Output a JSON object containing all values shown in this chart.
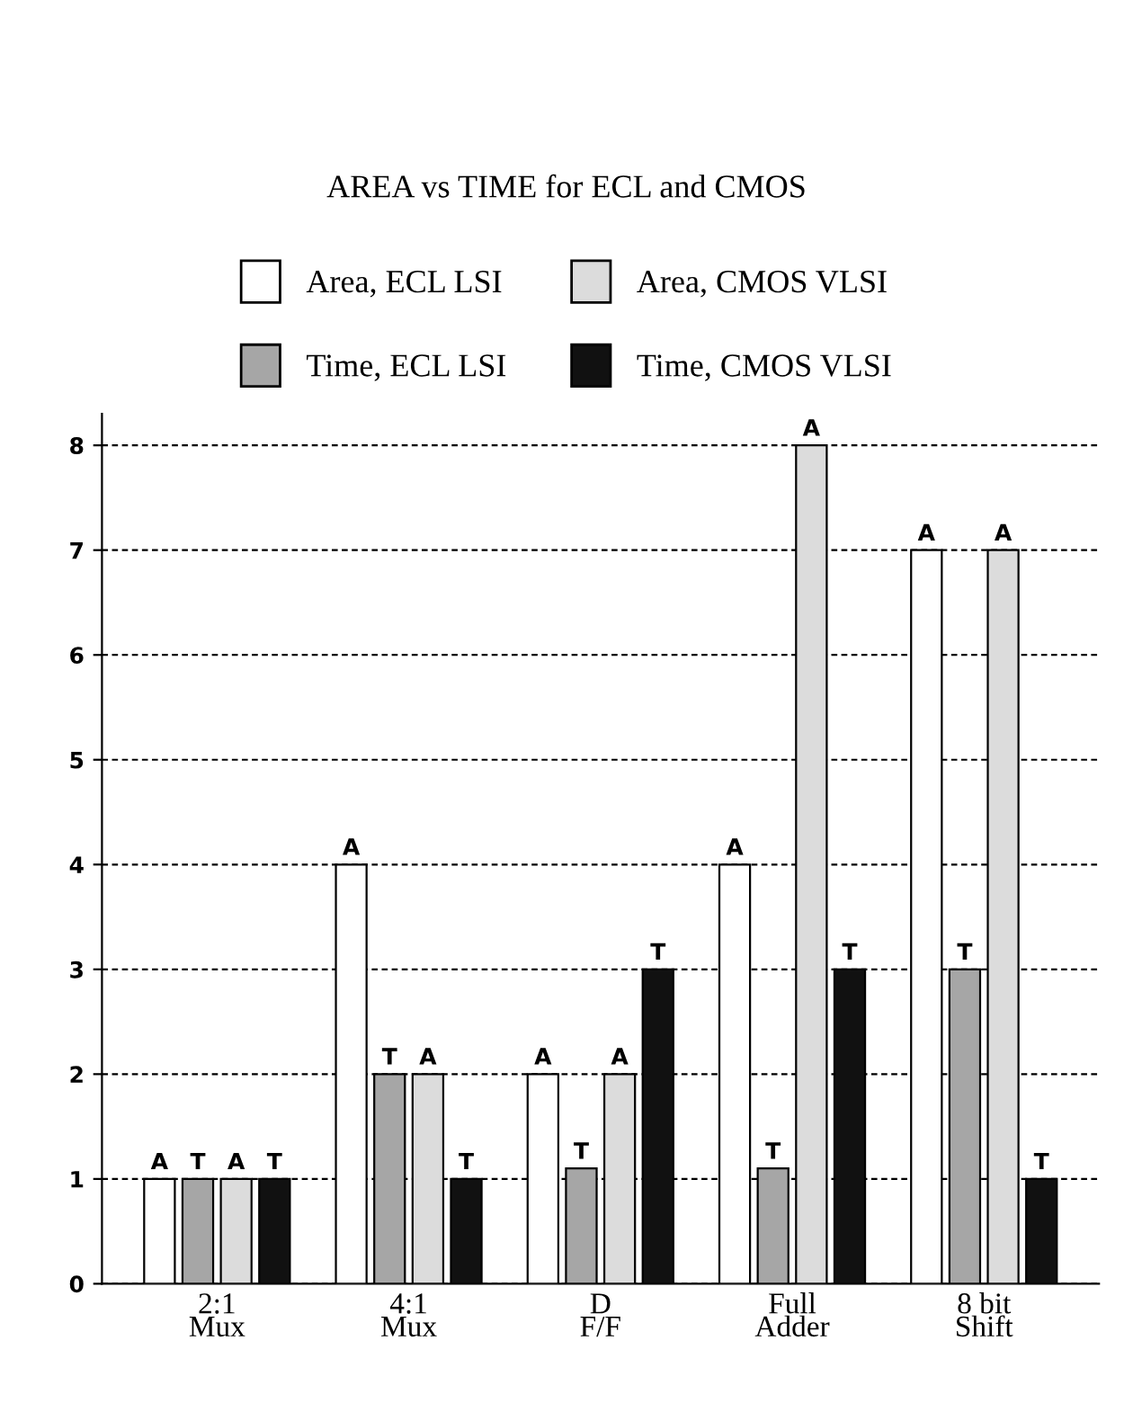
{
  "chart_data": {
    "type": "bar",
    "title": "AREA vs TIME for ECL and CMOS",
    "categories": [
      "2:1\nMux",
      "4:1\nMux",
      "D\nF/F",
      "Full\nAdder",
      "8 bit\nShift"
    ],
    "series": [
      {
        "name": "Area, ECL LSI",
        "color": "#ffffff",
        "values": [
          1,
          4,
          2,
          4,
          7
        ],
        "value_labels": [
          "A",
          "A",
          "A",
          "A",
          "A"
        ]
      },
      {
        "name": "Time, ECL LSI",
        "color": "#a6a6a6",
        "values": [
          1,
          2,
          1.1,
          1.1,
          3
        ],
        "value_labels": [
          "T",
          "T",
          "T",
          "T",
          "T"
        ]
      },
      {
        "name": "Area, CMOS VLSI",
        "color": "#dcdcdc",
        "values": [
          1,
          2,
          2,
          8,
          7
        ],
        "value_labels": [
          "A",
          "A",
          "A",
          "A",
          "A"
        ]
      },
      {
        "name": "Time, CMOS VLSI",
        "color": "#111111",
        "values": [
          1,
          1,
          3,
          3,
          1
        ],
        "value_labels": [
          "T",
          "T",
          "T",
          "T",
          "T"
        ]
      }
    ],
    "ylim": [
      0,
      8.3
    ],
    "yticks": [
      0,
      1,
      2,
      3,
      4,
      5,
      6,
      7,
      8
    ],
    "grid": "y",
    "legend": "top"
  }
}
